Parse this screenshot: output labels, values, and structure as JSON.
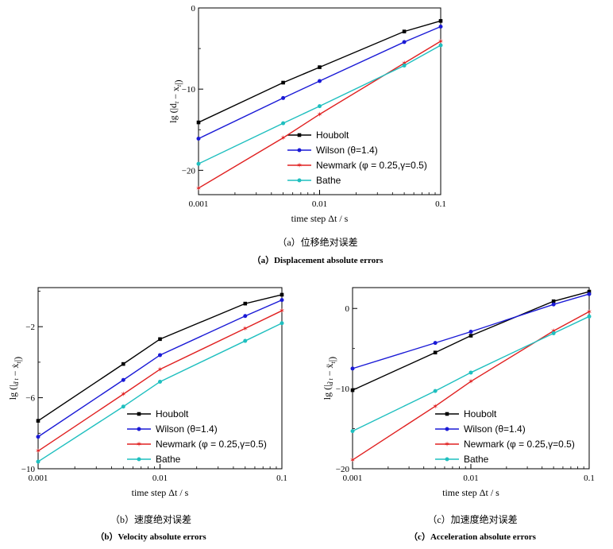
{
  "captions": [
    {
      "zh": "（a）位移绝对误差",
      "en": "（a）Displacement absolute errors"
    },
    {
      "zh": "（b）速度绝对误差",
      "en": "（b）Velocity absolute errors"
    },
    {
      "zh": "（c）加速度绝对误差",
      "en": "（c）Acceleration absolute errors"
    }
  ],
  "colors": {
    "Houbolt": "#000000",
    "Wilson": "#1a1ad6",
    "Newmark": "#e02020",
    "Bathe": "#1fbfbf"
  },
  "chart_data": [
    {
      "type": "line",
      "xscale": "log",
      "xlabel": "time step Δt / s",
      "ylabel_main": "lg (|d",
      "ylabel_sub": "t",
      "ylabel_mid": " − x",
      "ylabel_sub2": "t",
      "ylabel_end": "|)",
      "xlim": [
        0.001,
        0.1
      ],
      "ylim": [
        -23,
        0
      ],
      "xticks": [
        {
          "v": 0.001,
          "label": "0.001"
        },
        {
          "v": 0.01,
          "label": "0.01"
        },
        {
          "v": 0.1,
          "label": "0.1"
        }
      ],
      "yticks": [
        {
          "v": 0,
          "label": "0"
        },
        {
          "v": -10,
          "label": "−10"
        },
        {
          "v": -20,
          "label": "−20"
        }
      ],
      "x": [
        0.001,
        0.005,
        0.01,
        0.05,
        0.1
      ],
      "series": [
        {
          "name": "Houbolt",
          "key": "Houbolt",
          "marker": "square",
          "values": [
            -14.1,
            -9.2,
            -7.3,
            -2.9,
            -1.6
          ]
        },
        {
          "name": "Wilson (θ=1.4)",
          "key": "Wilson",
          "marker": "circle",
          "values": [
            -16.1,
            -11.1,
            -9.0,
            -4.2,
            -2.3
          ]
        },
        {
          "name": "Newmark (φ = 0.25,γ=0.5)",
          "key": "Newmark",
          "marker": "star",
          "values": [
            -22.2,
            -16.0,
            -13.1,
            -6.8,
            -4.1
          ]
        },
        {
          "name": "Bathe",
          "key": "Bathe",
          "marker": "circle",
          "values": [
            -19.2,
            -14.2,
            -12.1,
            -7.1,
            -4.6
          ]
        }
      ]
    },
    {
      "type": "line",
      "xscale": "log",
      "xlabel": "time step Δt / s",
      "ylabel_main": "lg (|",
      "ylabel_sub": "ḋ t",
      "ylabel_mid": " − ẋ",
      "ylabel_sub2": "t",
      "ylabel_end": "|)",
      "xlim": [
        0.001,
        0.1
      ],
      "ylim": [
        -10,
        0.2
      ],
      "xticks": [
        {
          "v": 0.001,
          "label": "0.001"
        },
        {
          "v": 0.01,
          "label": "0.01"
        },
        {
          "v": 0.1,
          "label": "0.1"
        }
      ],
      "yticks": [
        {
          "v": -2,
          "label": "−2"
        },
        {
          "v": -6,
          "label": "−6"
        },
        {
          "v": -10,
          "label": "−10"
        }
      ],
      "x": [
        0.001,
        0.005,
        0.01,
        0.05,
        0.1
      ],
      "series": [
        {
          "name": "Houbolt",
          "key": "Houbolt",
          "marker": "square",
          "values": [
            -7.3,
            -4.1,
            -2.7,
            -0.7,
            -0.2
          ]
        },
        {
          "name": "Wilson (θ=1.4)",
          "key": "Wilson",
          "marker": "circle",
          "values": [
            -8.2,
            -5.0,
            -3.6,
            -1.4,
            -0.5
          ]
        },
        {
          "name": "Newmark (φ = 0.25,γ=0.5)",
          "key": "Newmark",
          "marker": "star",
          "values": [
            -9.0,
            -5.8,
            -4.4,
            -2.1,
            -1.1
          ]
        },
        {
          "name": "Bathe",
          "key": "Bathe",
          "marker": "circle",
          "values": [
            -9.6,
            -6.5,
            -5.1,
            -2.8,
            -1.8
          ]
        }
      ]
    },
    {
      "type": "line",
      "xscale": "log",
      "xlabel": "time step Δt / s",
      "ylabel_main": "lg (|",
      "ylabel_sub": "d̈ t",
      "ylabel_mid": " − ẍ",
      "ylabel_sub2": "t",
      "ylabel_end": "|)",
      "xlim": [
        0.001,
        0.1
      ],
      "ylim": [
        -20,
        2.6
      ],
      "xticks": [
        {
          "v": 0.001,
          "label": "0.001"
        },
        {
          "v": 0.01,
          "label": "0.01"
        },
        {
          "v": 0.1,
          "label": "0.1"
        }
      ],
      "yticks": [
        {
          "v": 0,
          "label": "0"
        },
        {
          "v": -10,
          "label": "−10"
        },
        {
          "v": -20,
          "label": "−20"
        }
      ],
      "x": [
        0.001,
        0.005,
        0.01,
        0.05,
        0.1
      ],
      "series": [
        {
          "name": "Houbolt",
          "key": "Houbolt",
          "marker": "square",
          "values": [
            -10.2,
            -5.5,
            -3.4,
            0.9,
            2.1
          ]
        },
        {
          "name": "Wilson (θ=1.4)",
          "key": "Wilson",
          "marker": "circle",
          "values": [
            -7.5,
            -4.3,
            -2.9,
            0.5,
            1.8
          ]
        },
        {
          "name": "Newmark (φ = 0.25,γ=0.5)",
          "key": "Newmark",
          "marker": "star",
          "values": [
            -18.9,
            -12.2,
            -9.1,
            -2.8,
            -0.4
          ]
        },
        {
          "name": "Bathe",
          "key": "Bathe",
          "marker": "circle",
          "values": [
            -15.3,
            -10.3,
            -8.0,
            -3.1,
            -1.0
          ]
        }
      ]
    }
  ]
}
